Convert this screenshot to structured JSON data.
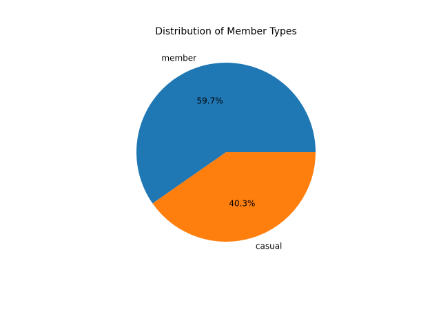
{
  "chart_data": {
    "type": "pie",
    "title": "Distribution of Member Types",
    "slices": [
      {
        "label": "member",
        "value": 59.7,
        "pct_label": "59.7%",
        "color": "#1f77b4"
      },
      {
        "label": "casual",
        "value": 40.3,
        "pct_label": "40.3%",
        "color": "#ff7f0e"
      }
    ],
    "start_angle": "counterclockwise from 3 o'clock",
    "legend": "none"
  }
}
